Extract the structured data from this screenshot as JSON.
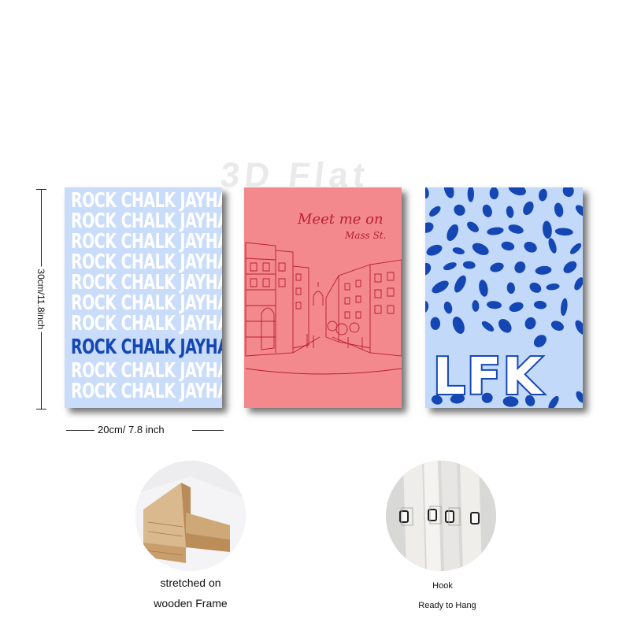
{
  "watermark": "3D Flat",
  "dimensions": {
    "height_label": "30cm/11.8inch",
    "width_label": "20cm/ 7.8 inch"
  },
  "panels": {
    "left": {
      "repeated_text": "ROCK CHALK JAYHAWK",
      "highlight_text": "ROCK CHALK JAYHAWK",
      "background": "#c9dcfa",
      "text_color": "#ffffff",
      "highlight_color": "#1446b4"
    },
    "middle": {
      "headline": "Meet me on",
      "subline": "Mass St.",
      "background": "#f3898c",
      "ink_color": "#b81f35"
    },
    "right": {
      "big_text": "LFK",
      "background": "#c3d9f9",
      "pattern_color": "#1446b4"
    }
  },
  "details": {
    "frame": {
      "line1": "stretched on",
      "line2": "wooden Frame"
    },
    "hook": {
      "line1": "Hook",
      "line2": "Ready to Hang"
    }
  }
}
